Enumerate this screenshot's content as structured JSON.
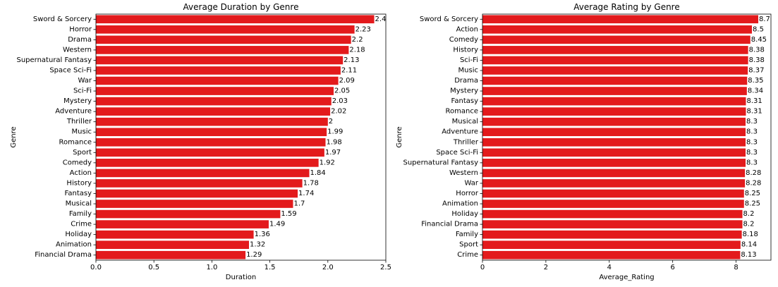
{
  "chart_data": [
    {
      "type": "bar",
      "orientation": "horizontal",
      "title": "Average Duration by Genre",
      "xlabel": "Duration",
      "ylabel": "Genre",
      "xlim": [
        0,
        2.5
      ],
      "xticks": [
        "0.0",
        "0.5",
        "1.0",
        "1.5",
        "2.0",
        "2.5"
      ],
      "grid": false,
      "color": "#e31a1c",
      "categories": [
        "Sword & Sorcery",
        "Horror",
        "Drama",
        "Western",
        "Supernatural Fantasy",
        "Space Sci-Fi",
        "War",
        "Sci-Fi",
        "Mystery",
        "Adventure",
        "Thriller",
        "Music",
        "Romance",
        "Sport",
        "Comedy",
        "Action",
        "History",
        "Fantasy",
        "Musical",
        "Family",
        "Crime",
        "Holiday",
        "Animation",
        "Financial Drama"
      ],
      "values": [
        2.4,
        2.23,
        2.2,
        2.18,
        2.13,
        2.11,
        2.09,
        2.05,
        2.03,
        2.02,
        2,
        1.99,
        1.98,
        1.97,
        1.92,
        1.84,
        1.78,
        1.74,
        1.7,
        1.59,
        1.49,
        1.36,
        1.32,
        1.29
      ],
      "labels": [
        "2.4",
        "2.23",
        "2.2",
        "2.18",
        "2.13",
        "2.11",
        "2.09",
        "2.05",
        "2.03",
        "2.02",
        "2",
        "1.99",
        "1.98",
        "1.97",
        "1.92",
        "1.84",
        "1.78",
        "1.74",
        "1.7",
        "1.59",
        "1.49",
        "1.36",
        "1.32",
        "1.29"
      ]
    },
    {
      "type": "bar",
      "orientation": "horizontal",
      "title": "Average Rating by Genre",
      "xlabel": "Average_Rating",
      "ylabel": "Genre",
      "xlim": [
        0,
        9.1
      ],
      "xticks": [
        "0",
        "2",
        "4",
        "6",
        "8"
      ],
      "grid": false,
      "color": "#e31a1c",
      "categories": [
        "Sword & Sorcery",
        "Action",
        "Comedy",
        "History",
        "Sci-Fi",
        "Music",
        "Drama",
        "Mystery",
        "Fantasy",
        "Romance",
        "Musical",
        "Adventure",
        "Thriller",
        "Space Sci-Fi",
        "Supernatural Fantasy",
        "Western",
        "War",
        "Horror",
        "Animation",
        "Holiday",
        "Financial Drama",
        "Family",
        "Sport",
        "Crime"
      ],
      "values": [
        8.7,
        8.5,
        8.45,
        8.38,
        8.38,
        8.37,
        8.35,
        8.34,
        8.31,
        8.31,
        8.3,
        8.3,
        8.3,
        8.3,
        8.3,
        8.28,
        8.28,
        8.25,
        8.25,
        8.2,
        8.2,
        8.18,
        8.14,
        8.13
      ],
      "labels": [
        "8.7",
        "8.5",
        "8.45",
        "8.38",
        "8.38",
        "8.37",
        "8.35",
        "8.34",
        "8.31",
        "8.31",
        "8.3",
        "8.3",
        "8.3",
        "8.3",
        "8.3",
        "8.28",
        "8.28",
        "8.25",
        "8.25",
        "8.2",
        "8.2",
        "8.18",
        "8.14",
        "8.13"
      ]
    }
  ]
}
